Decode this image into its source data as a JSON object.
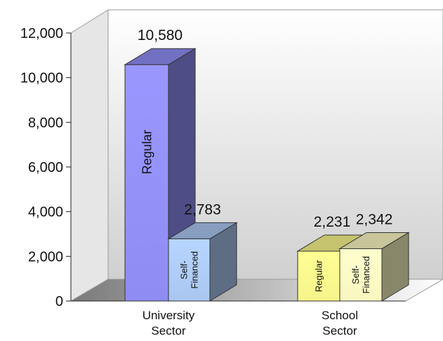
{
  "chart_data": {
    "type": "bar",
    "categories": [
      "University\nSector",
      "School\nSector"
    ],
    "series": [
      {
        "name": "Regular",
        "values": [
          10580,
          2231
        ]
      },
      {
        "name": "Self-\nFinanced",
        "values": [
          2783,
          2342
        ]
      }
    ],
    "data_labels": [
      [
        "10,580",
        "2,231"
      ],
      [
        "2,783",
        "2,342"
      ]
    ],
    "y_ticks": [
      "0",
      "2,000",
      "4,000",
      "6,000",
      "8,000",
      "10,000",
      "12,000"
    ],
    "ylim": [
      0,
      12000
    ],
    "title": "",
    "xlabel": "",
    "ylabel": "",
    "legend": "none",
    "grid": false,
    "three_d": true,
    "colors": {
      "regular_university": "#8f8cf3",
      "self_university": "#a9c6f0",
      "regular_school": "#f6f48a",
      "self_school": "#f9f6bf",
      "wall": "#d8d8d8",
      "floor": "#8c8c8c"
    }
  }
}
